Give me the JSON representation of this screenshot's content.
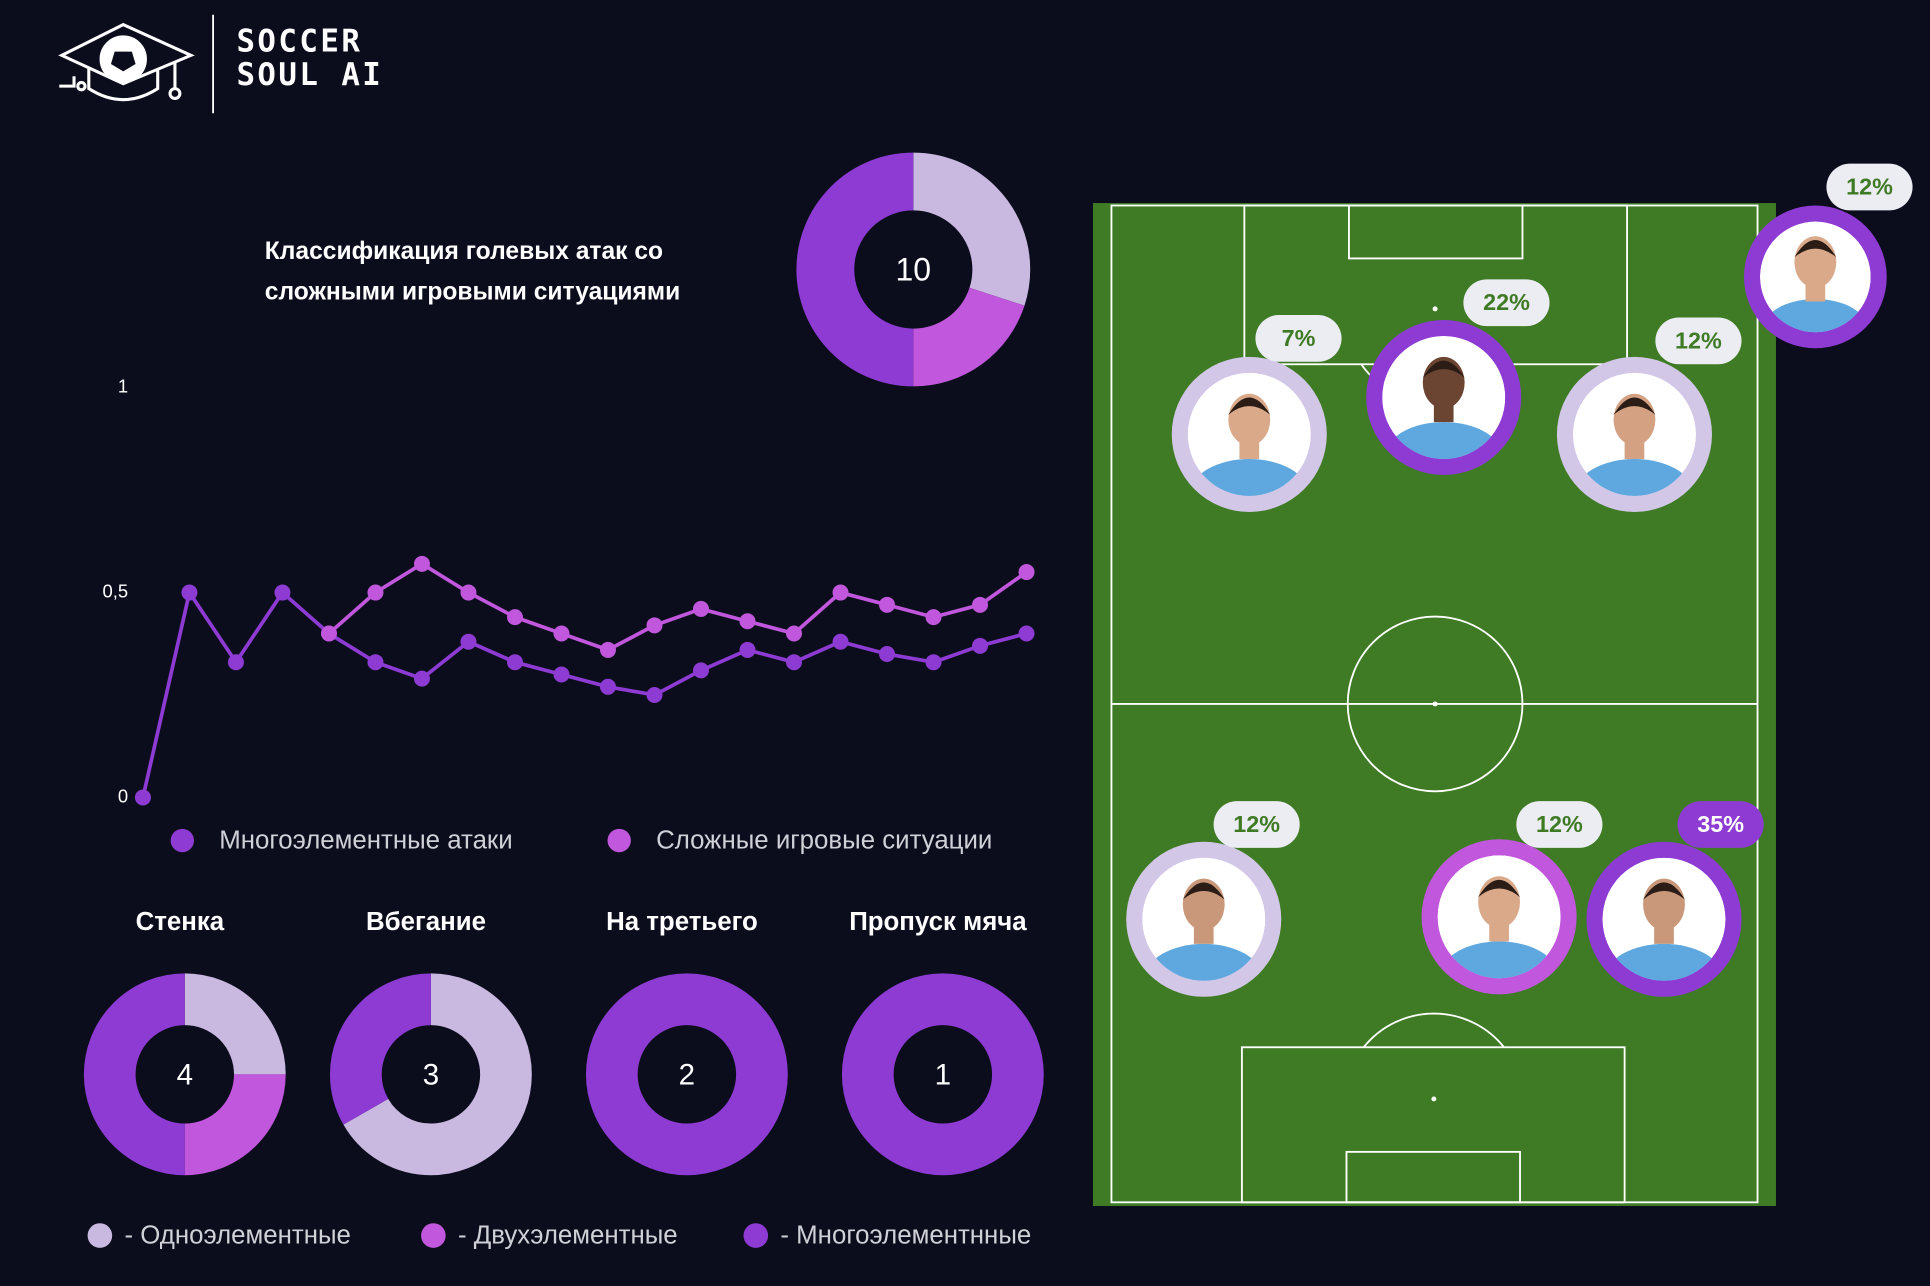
{
  "header": {
    "brand_line1": "SOCCER",
    "brand_line2": "SOUL AI"
  },
  "chart_data": [
    {
      "type": "line",
      "ylim": [
        0,
        1
      ],
      "yticks": [
        0,
        {
          "value": 0.5,
          "label": "0,5"
        },
        1
      ],
      "series": [
        {
          "name": "Многоэлементные атаки",
          "color": "#8e3bd4",
          "values": [
            0,
            0.5,
            0.33,
            0.5,
            0.4,
            0.33,
            0.29,
            0.38,
            0.33,
            0.3,
            0.27,
            0.25,
            0.31,
            0.36,
            0.33,
            0.38,
            0.35,
            0.33,
            0.37,
            0.4
          ]
        },
        {
          "name": "Сложные игровые ситуации",
          "color": "#c157dc",
          "values": [
            null,
            null,
            null,
            null,
            0.4,
            0.5,
            0.57,
            0.5,
            0.44,
            0.4,
            0.36,
            0.42,
            0.46,
            0.43,
            0.4,
            0.5,
            0.47,
            0.44,
            0.47,
            0.55
          ]
        }
      ]
    },
    {
      "type": "donut",
      "title": [
        "Классификация голевых атак со",
        "сложными игровыми ситуациями"
      ],
      "total": 10,
      "values": [
        3,
        2,
        5
      ],
      "colors": [
        "#c9b8e0",
        "#c157dc",
        "#8e3bd4"
      ]
    },
    {
      "type": "donut",
      "title": "Стенка",
      "total": 4,
      "values": [
        1,
        1,
        2
      ],
      "colors": [
        "#c9b8e0",
        "#c157dc",
        "#8e3bd4"
      ]
    },
    {
      "type": "donut",
      "title": "Вбегание",
      "total": 3,
      "values": [
        2,
        0,
        1
      ],
      "colors": [
        "#c9b8e0",
        "#c157dc",
        "#8e3bd4"
      ]
    },
    {
      "type": "donut",
      "title": "На третьего",
      "total": 2,
      "values": [
        0,
        0,
        2
      ],
      "colors": [
        "#c9b8e0",
        "#c157dc",
        "#8e3bd4"
      ]
    },
    {
      "type": "donut",
      "title": "Пропуск мяча",
      "total": 1,
      "values": [
        0,
        0,
        1
      ],
      "colors": [
        "#c9b8e0",
        "#c157dc",
        "#8e3bd4"
      ]
    }
  ],
  "donut_legend": {
    "labels": [
      "- Одноэлементные",
      "- Двухэлементные",
      "- Многоэлементнные"
    ],
    "colors": [
      "#c9b8e0",
      "#c157dc",
      "#8e3bd4"
    ]
  },
  "pitch": {
    "players": [
      {
        "label": "7%",
        "ring": "#d3c7e8"
      },
      {
        "label": "22%",
        "ring": "#8e3bd4"
      },
      {
        "label": "12%",
        "ring": "#d3c7e8"
      },
      {
        "label": "12%",
        "ring": "#8e3bd4"
      },
      {
        "label": "12%",
        "ring": "#d3c7e8"
      },
      {
        "label": "12%",
        "ring": "#c157dc"
      },
      {
        "label": "35%",
        "ring": "#8e3bd4"
      }
    ]
  }
}
